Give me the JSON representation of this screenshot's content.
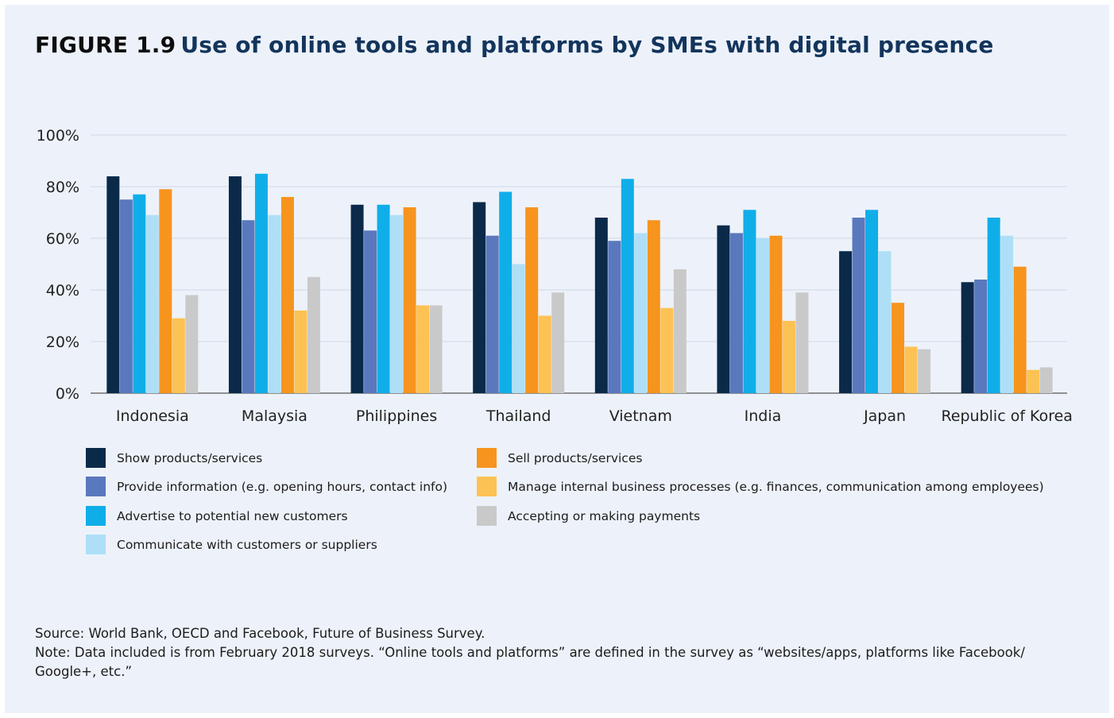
{
  "figure": {
    "label": "FIGURE 1.9",
    "title": "Use of online tools and platforms by SMEs with digital presence"
  },
  "chart_data": {
    "type": "bar",
    "ylim": [
      0,
      100
    ],
    "yticks": [
      0,
      20,
      40,
      60,
      80,
      100
    ],
    "ytick_labels": [
      "0%",
      "20%",
      "40%",
      "60%",
      "80%",
      "100%"
    ],
    "xlabel": "",
    "ylabel": "",
    "grid": true,
    "categories": [
      "Indonesia",
      "Malaysia",
      "Philippines",
      "Thailand",
      "Vietnam",
      "India",
      "Japan",
      "Republic of Korea"
    ],
    "series": [
      {
        "name": "Show products/services",
        "color": "#0b2a4a",
        "values": [
          84,
          84,
          73,
          74,
          68,
          65,
          55,
          43
        ]
      },
      {
        "name": "Provide information (e.g. opening hours, contact info)",
        "color": "#5a78bd",
        "values": [
          75,
          67,
          63,
          61,
          59,
          62,
          68,
          44
        ]
      },
      {
        "name": "Advertise to potential new customers",
        "color": "#10aee8",
        "values": [
          77,
          85,
          73,
          78,
          83,
          71,
          71,
          68
        ]
      },
      {
        "name": "Communicate with customers or suppliers",
        "color": "#aedff7",
        "values": [
          69,
          69,
          69,
          50,
          62,
          60,
          55,
          61
        ]
      },
      {
        "name": "Sell products/services",
        "color": "#f7941d",
        "values": [
          79,
          76,
          72,
          72,
          67,
          61,
          35,
          49
        ]
      },
      {
        "name": "Manage internal business processes (e.g. finances, communication among employees)",
        "color": "#fdc254",
        "values": [
          29,
          32,
          34,
          30,
          33,
          28,
          18,
          9
        ]
      },
      {
        "name": "Accepting or making payments",
        "color": "#c9c9c9",
        "values": [
          38,
          45,
          34,
          39,
          48,
          39,
          17,
          10
        ]
      }
    ],
    "legend_position": "bottom"
  },
  "notes": {
    "source": "Source: World Bank, OECD and Facebook, Future of Business Survey.",
    "note": "Note: Data included is from February 2018 surveys. “Online tools and platforms” are defined in the survey as “websites/apps, platforms like Facebook/ Google+, etc.”"
  }
}
